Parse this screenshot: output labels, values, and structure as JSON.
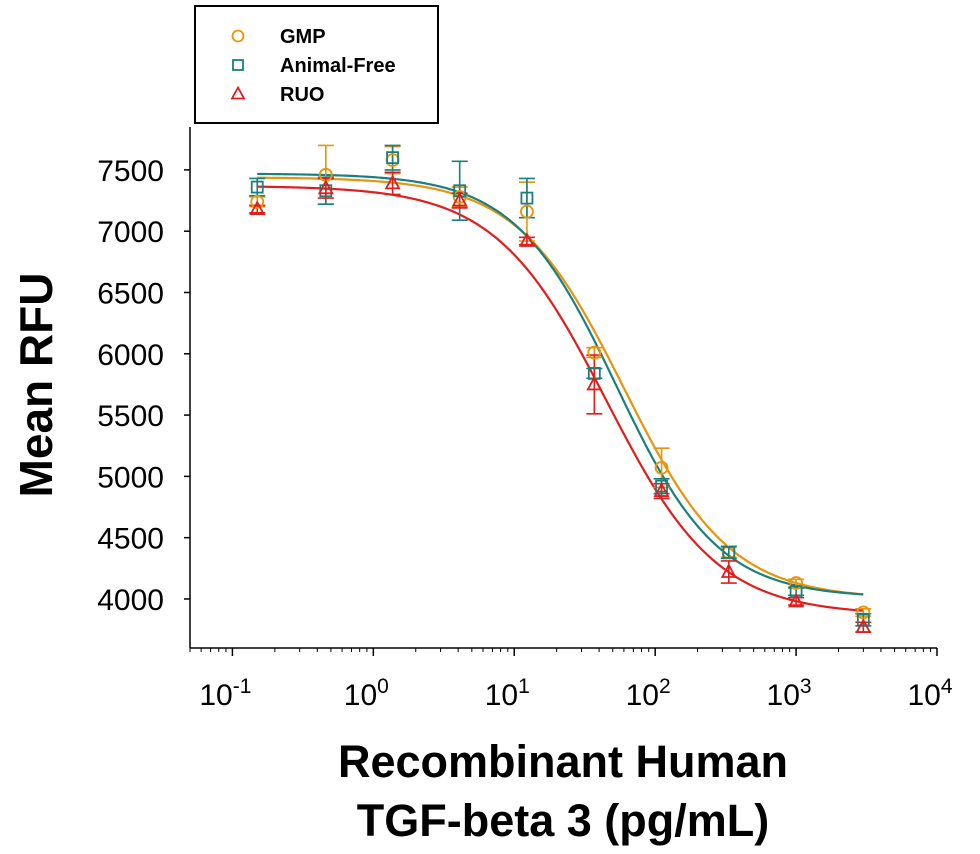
{
  "chart_data": {
    "type": "scatter",
    "title": "",
    "xlabel_lines": [
      "Recombinant Human",
      "TGF-beta 3 (pg/mL)"
    ],
    "ylabel": "Mean RFU",
    "x_scale": "log",
    "xlim": [
      0.05,
      10000
    ],
    "ylim": [
      3600,
      7850
    ],
    "x_ticks": [
      {
        "value": 0.1,
        "base": "10",
        "exp": "-1"
      },
      {
        "value": 1,
        "base": "10",
        "exp": "0"
      },
      {
        "value": 10,
        "base": "10",
        "exp": "1"
      },
      {
        "value": 100,
        "base": "10",
        "exp": "2"
      },
      {
        "value": 1000,
        "base": "10",
        "exp": "3"
      },
      {
        "value": 10000,
        "base": "10",
        "exp": "4"
      }
    ],
    "y_ticks": [
      4000,
      4500,
      5000,
      5500,
      6000,
      6500,
      7000,
      7500
    ],
    "grid": false,
    "legend_position": "top-left",
    "x": [
      0.15,
      0.46,
      1.37,
      4.1,
      12.3,
      37,
      111,
      333,
      1000,
      3000
    ],
    "series": [
      {
        "name": "GMP",
        "marker": "circle",
        "color": "#E8940C",
        "y": [
          7240,
          7460,
          7580,
          7280,
          7160,
          6010,
          5070,
          4380,
          4130,
          3890
        ],
        "err": [
          40,
          240,
          110,
          80,
          240,
          40,
          160,
          40,
          30,
          30
        ],
        "fit": {
          "top": 7440,
          "bottom": 4000,
          "ec50": 60,
          "hill": 1.15
        }
      },
      {
        "name": "Animal-Free",
        "marker": "square",
        "color": "#1A7F7F",
        "y": [
          7360,
          7330,
          7600,
          7330,
          7270,
          5840,
          4920,
          4380,
          4060,
          3830
        ],
        "err": [
          70,
          110,
          100,
          240,
          160,
          40,
          60,
          50,
          30,
          50
        ],
        "fit": {
          "top": 7470,
          "bottom": 4010,
          "ec50": 53,
          "hill": 1.2
        }
      },
      {
        "name": "RUO",
        "marker": "triangle",
        "color": "#E01E1E",
        "y": [
          7180,
          7350,
          7390,
          7250,
          6920,
          5750,
          4880,
          4220,
          3980,
          3770
        ],
        "err": [
          30,
          80,
          90,
          60,
          30,
          240,
          60,
          90,
          30,
          40
        ],
        "fit": {
          "top": 7370,
          "bottom": 3870,
          "ec50": 45,
          "hill": 1.1
        }
      }
    ]
  }
}
